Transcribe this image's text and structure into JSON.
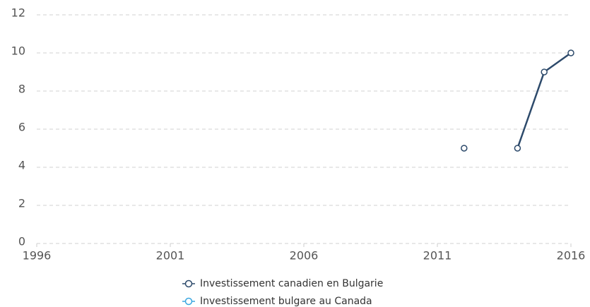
{
  "chart_data": {
    "type": "line",
    "x": [
      2012,
      2013,
      2014,
      2015,
      2016
    ],
    "series": [
      {
        "name": "Investissement canadien en Bulgarie",
        "color": "#2d4a6b",
        "values": [
          5,
          null,
          5,
          9,
          10
        ]
      },
      {
        "name": "Investissement bulgare au Canada",
        "color": "#3ba7e0",
        "values": [
          null,
          null,
          null,
          null,
          null
        ]
      }
    ],
    "xlim": [
      1996,
      2016
    ],
    "xticks": [
      1996,
      2001,
      2006,
      2011,
      2016
    ],
    "ylim": [
      0,
      12
    ],
    "yticks": [
      0,
      2,
      4,
      6,
      8,
      10,
      12
    ],
    "grid": true
  }
}
